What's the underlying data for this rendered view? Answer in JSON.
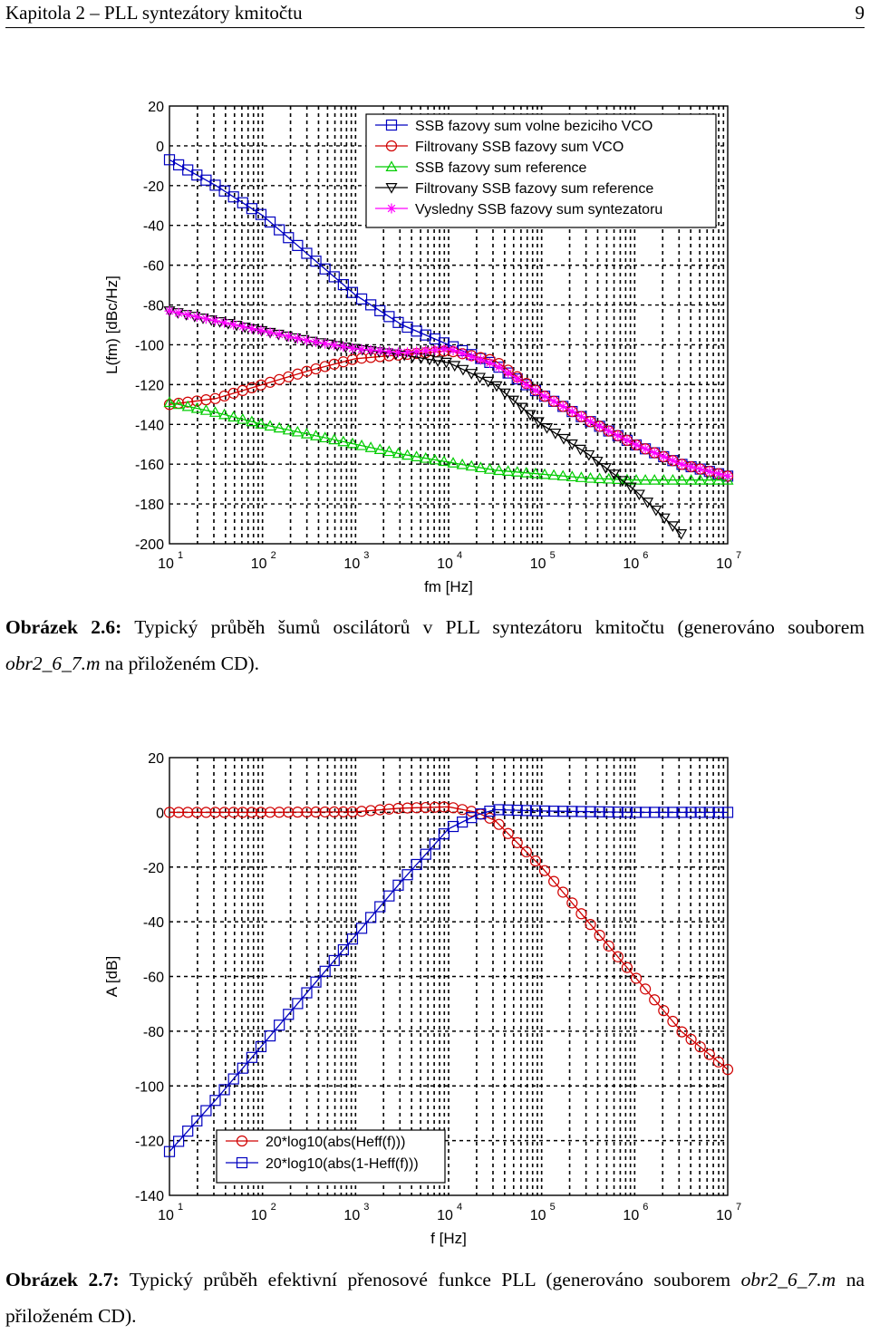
{
  "header": {
    "title": "Kapitola 2 – PLL syntezátory kmitočtu",
    "page_number": "9"
  },
  "figure1": {
    "caption_label": "Obrázek 2.6:",
    "caption_text": " Typický průběh šumů oscilátorů v PLL syntezátoru kmitočtu (generováno souborem ",
    "caption_file": "obr2_6_7.m",
    "caption_end": " na přiloženém CD)."
  },
  "figure2": {
    "caption_label": "Obrázek 2.7:",
    "caption_text": " Typický průběh efektivní přenosové funkce PLL (generováno souborem ",
    "caption_file": "obr2_6_7.m",
    "caption_end": " na přiloženém CD)."
  },
  "chart_data": [
    {
      "type": "line",
      "title": "",
      "xlabel": "fm [Hz]",
      "ylabel": "L(fm) [dBc/Hz]",
      "xscale": "log",
      "xlim": [
        10,
        10000000
      ],
      "ylim": [
        -200,
        20
      ],
      "yticks": [
        20,
        0,
        -20,
        -40,
        -60,
        -80,
        -100,
        -120,
        -140,
        -160,
        -180,
        -200
      ],
      "xtick_exponents": [
        "1",
        "2",
        "3",
        "4",
        "5",
        "6",
        "7"
      ],
      "xtick_base": "10",
      "grid": true,
      "legend_position": "top-right",
      "series": [
        {
          "name": "SSB fazovy sum volne beziciho VCO",
          "color": "#0000c0",
          "marker": "square",
          "x": [
            10,
            31.6,
            100,
            316,
            1000,
            3160,
            10000,
            31600,
            100000,
            316000,
            1000000,
            3160000,
            10000000
          ],
          "y": [
            -7,
            -20,
            -35,
            -55,
            -75,
            -90,
            -100,
            -110,
            -125,
            -138,
            -150,
            -160,
            -166
          ]
        },
        {
          "name": "Filtrovany SSB fazovy sum VCO",
          "color": "#d00000",
          "marker": "circle",
          "x": [
            10,
            31.6,
            100,
            316,
            1000,
            3160,
            10000,
            31600,
            100000,
            316000,
            1000000,
            3160000,
            10000000
          ],
          "y": [
            -130,
            -127,
            -120,
            -113,
            -107,
            -105,
            -103,
            -108,
            -125,
            -138,
            -150,
            -160,
            -166
          ]
        },
        {
          "name": "SSB fazovy sum reference",
          "color": "#00cc00",
          "marker": "triangle-up",
          "x": [
            10,
            31.6,
            100,
            316,
            1000,
            3160,
            10000,
            31600,
            100000,
            316000,
            1000000,
            3160000,
            10000000
          ],
          "y": [
            -129,
            -134,
            -140,
            -145,
            -150,
            -155,
            -159,
            -163,
            -165,
            -167,
            -168,
            -168,
            -168
          ]
        },
        {
          "name": "Filtrovany SSB fazovy sum reference",
          "color": "#000000",
          "marker": "triangle-down",
          "x": [
            10,
            31.6,
            100,
            316,
            1000,
            3160,
            10000,
            31600,
            100000,
            316000,
            1000000,
            3160000
          ],
          "y": [
            -83,
            -88,
            -93,
            -98,
            -102,
            -105,
            -109,
            -120,
            -140,
            -155,
            -173,
            -195
          ]
        },
        {
          "name": "Vysledny SSB fazovy sum syntezatoru",
          "color": "#ff00ff",
          "marker": "star",
          "x": [
            10,
            31.6,
            100,
            316,
            1000,
            3160,
            10000,
            31600,
            100000,
            316000,
            1000000,
            3160000,
            10000000
          ],
          "y": [
            -83,
            -88,
            -93,
            -98,
            -102,
            -104,
            -102,
            -110,
            -125,
            -138,
            -150,
            -160,
            -166
          ]
        }
      ]
    },
    {
      "type": "line",
      "title": "",
      "xlabel": "f [Hz]",
      "ylabel": "A [dB]",
      "xscale": "log",
      "xlim": [
        10,
        10000000
      ],
      "ylim": [
        -140,
        20
      ],
      "yticks": [
        20,
        0,
        -20,
        -40,
        -60,
        -80,
        -100,
        -120,
        -140
      ],
      "xtick_exponents": [
        "1",
        "2",
        "3",
        "4",
        "5",
        "6",
        "7"
      ],
      "xtick_base": "10",
      "grid": true,
      "legend_position": "bottom-left",
      "series": [
        {
          "name": "20*log10(abs(Heff(f)))",
          "color": "#d00000",
          "marker": "circle",
          "x": [
            10,
            100,
            1000,
            3000,
            10000,
            20000,
            31600,
            100000,
            316000,
            1000000,
            3160000,
            10000000
          ],
          "y": [
            0,
            0,
            0.2,
            1.5,
            2,
            0,
            -3,
            -20,
            -40,
            -60,
            -80,
            -94
          ]
        },
        {
          "name": "20*log10(abs(1-Heff(f)))",
          "color": "#0000c0",
          "marker": "square",
          "x": [
            10,
            31.6,
            100,
            316,
            1000,
            3160,
            10000,
            20000,
            31600,
            100000,
            1000000,
            10000000
          ],
          "y": [
            -124,
            -105,
            -85,
            -65,
            -45,
            -25,
            -6,
            -1,
            1,
            0.5,
            0,
            0
          ]
        }
      ]
    }
  ]
}
